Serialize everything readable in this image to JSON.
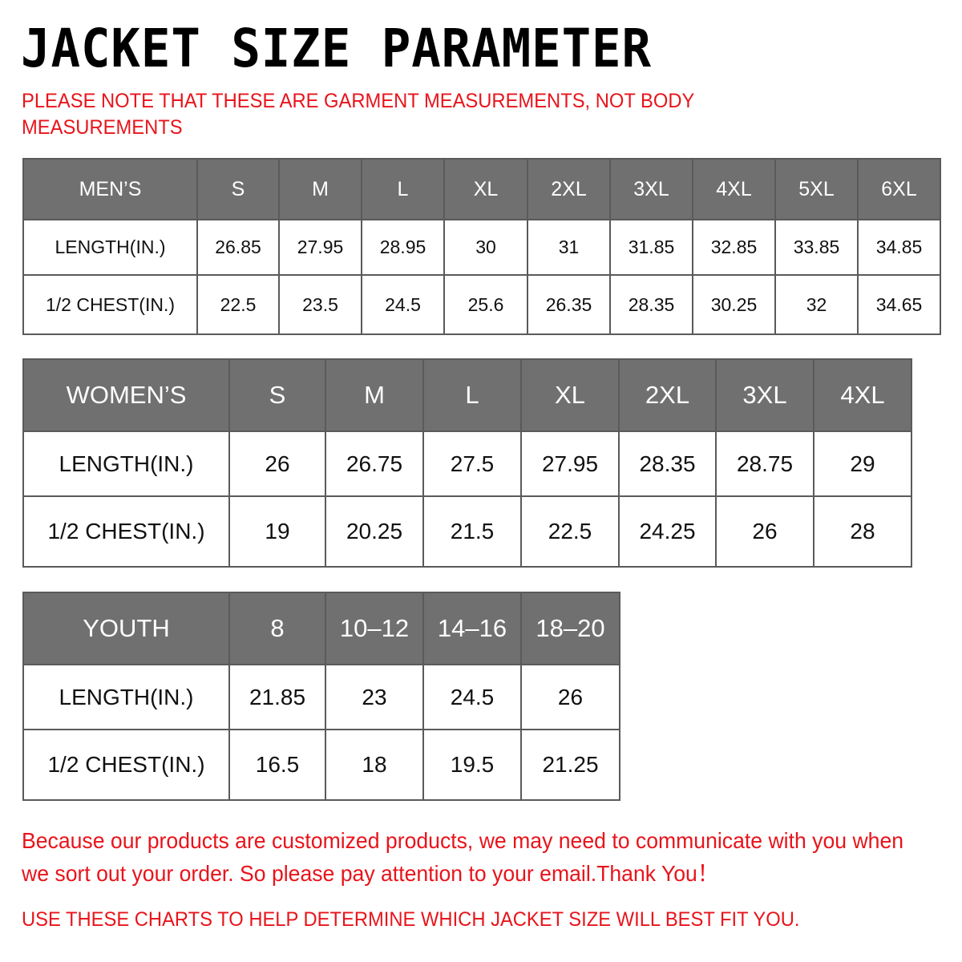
{
  "title": "JACKET  SIZE  PARAMETER",
  "note": "PLEASE NOTE THAT THESE ARE GARMENT MEASUREMENTS, NOT BODY MEASUREMENTS",
  "colors": {
    "header_bg": "#707070",
    "note_red": "#e8141b"
  },
  "tables": {
    "men": {
      "header": [
        "MEN’S",
        "S",
        "M",
        "L",
        "XL",
        "2XL",
        "3XL",
        "4XL",
        "5XL",
        "6XL"
      ],
      "rows": [
        [
          "LENGTH(IN.)",
          "26.85",
          "27.95",
          "28.95",
          "30",
          "31",
          "31.85",
          "32.85",
          "33.85",
          "34.85"
        ],
        [
          "1/2 CHEST(IN.)",
          "22.5",
          "23.5",
          "24.5",
          "25.6",
          "26.35",
          "28.35",
          "30.25",
          "32",
          "34.65"
        ]
      ]
    },
    "women": {
      "header": [
        "WOMEN’S",
        "S",
        "M",
        "L",
        "XL",
        "2XL",
        "3XL",
        "4XL"
      ],
      "rows": [
        [
          "LENGTH(IN.)",
          "26",
          "26.75",
          "27.5",
          "27.95",
          "28.35",
          "28.75",
          "29"
        ],
        [
          "1/2 CHEST(IN.)",
          "19",
          "20.25",
          "21.5",
          "22.5",
          "24.25",
          "26",
          "28"
        ]
      ]
    },
    "youth": {
      "header": [
        "YOUTH",
        "8",
        "10–12",
        "14–16",
        "18–20"
      ],
      "rows": [
        [
          "LENGTH(IN.)",
          "21.85",
          "23",
          "24.5",
          "26"
        ],
        [
          "1/2 CHEST(IN.)",
          "16.5",
          "18",
          "19.5",
          "21.25"
        ]
      ]
    }
  },
  "footer": {
    "message": "Because our products are customized products, we may need to communicate with you when we sort out your order. So please pay attention to your email.Thank You！",
    "instruction": "USE THESE CHARTS TO HELP DETERMINE WHICH JACKET SIZE WILL BEST FIT YOU."
  }
}
